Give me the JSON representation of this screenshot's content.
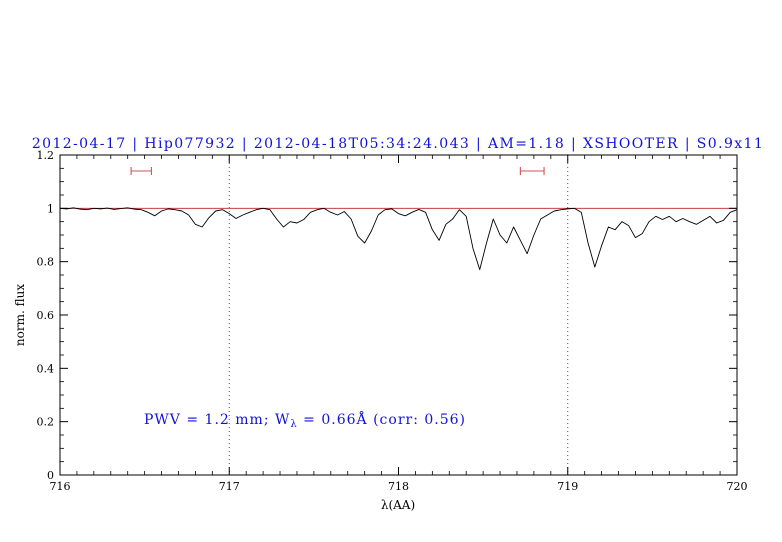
{
  "title": "2012-04-17 | Hip077932 | 2012-04-18T05:34:24.043 | AM=1.18 | XSHOOTER | S0.9x11",
  "annotation": {
    "prefix": "PWV = 1.2 mm; W",
    "subscript": "λ",
    "suffix": " = 0.66Å (corr: 0.56)"
  },
  "colors": {
    "title_text": "#1111dd",
    "annotation_text": "#1111dd",
    "spectrum_line": "#000000",
    "continuum_line": "#bb2222",
    "range_marker": "#cc5555",
    "dotted_line": "#444444",
    "axis": "#000000"
  },
  "chart_data": {
    "type": "line",
    "title": "2012-04-17 | Hip077932 | 2012-04-18T05:34:24.043 | AM=1.18 | XSHOOTER | S0.9x11",
    "xlabel": "λ(AA)",
    "ylabel": "norm. flux",
    "xlim": [
      716,
      720
    ],
    "ylim": [
      0,
      1.2
    ],
    "x_ticks": [
      716,
      717,
      718,
      719,
      720
    ],
    "x_tick_labels": [
      "716",
      "717",
      "718",
      "719",
      "720"
    ],
    "y_ticks": [
      0,
      0.2,
      0.4,
      0.6,
      0.8,
      1,
      1.2
    ],
    "y_tick_labels": [
      "0",
      "0.2",
      "0.4",
      "0.6",
      "0.8",
      "1",
      "1.2"
    ],
    "x_minor_step": 0.1,
    "y_minor_step": 0.05,
    "grid": false,
    "vlines": [
      717,
      719
    ],
    "hline": 1.0,
    "range_markers": [
      {
        "x1": 716.42,
        "x2": 716.54,
        "y": 1.14
      },
      {
        "x1": 718.72,
        "x2": 718.86,
        "y": 1.14
      }
    ],
    "annotation": {
      "text": "PWV = 1.2 mm; Wλ = 0.66Å (corr: 0.56)",
      "x": 716.5,
      "y": 0.22
    },
    "series": [
      {
        "name": "spectrum",
        "x_start": 716.0,
        "x_step": 0.04,
        "y": [
          1.0,
          0.998,
          1.002,
          0.997,
          0.995,
          1.0,
          0.998,
          1.001,
          0.996,
          0.999,
          1.002,
          0.997,
          0.995,
          0.985,
          0.972,
          0.99,
          0.998,
          0.995,
          0.99,
          0.975,
          0.94,
          0.93,
          0.965,
          0.99,
          0.995,
          0.98,
          0.962,
          0.975,
          0.985,
          0.995,
          1.0,
          0.995,
          0.96,
          0.93,
          0.95,
          0.945,
          0.958,
          0.985,
          0.995,
          1.0,
          0.985,
          0.975,
          0.988,
          0.96,
          0.895,
          0.87,
          0.915,
          0.975,
          0.995,
          0.998,
          0.98,
          0.972,
          0.985,
          0.996,
          0.985,
          0.92,
          0.88,
          0.94,
          0.96,
          0.995,
          0.97,
          0.85,
          0.77,
          0.87,
          0.96,
          0.9,
          0.87,
          0.93,
          0.88,
          0.83,
          0.9,
          0.96,
          0.975,
          0.99,
          0.995,
          0.998,
          1.0,
          0.985,
          0.87,
          0.78,
          0.86,
          0.93,
          0.92,
          0.95,
          0.935,
          0.89,
          0.905,
          0.95,
          0.97,
          0.958,
          0.97,
          0.95,
          0.962,
          0.95,
          0.94,
          0.955,
          0.97,
          0.945,
          0.955,
          0.985,
          0.995
        ]
      }
    ]
  }
}
